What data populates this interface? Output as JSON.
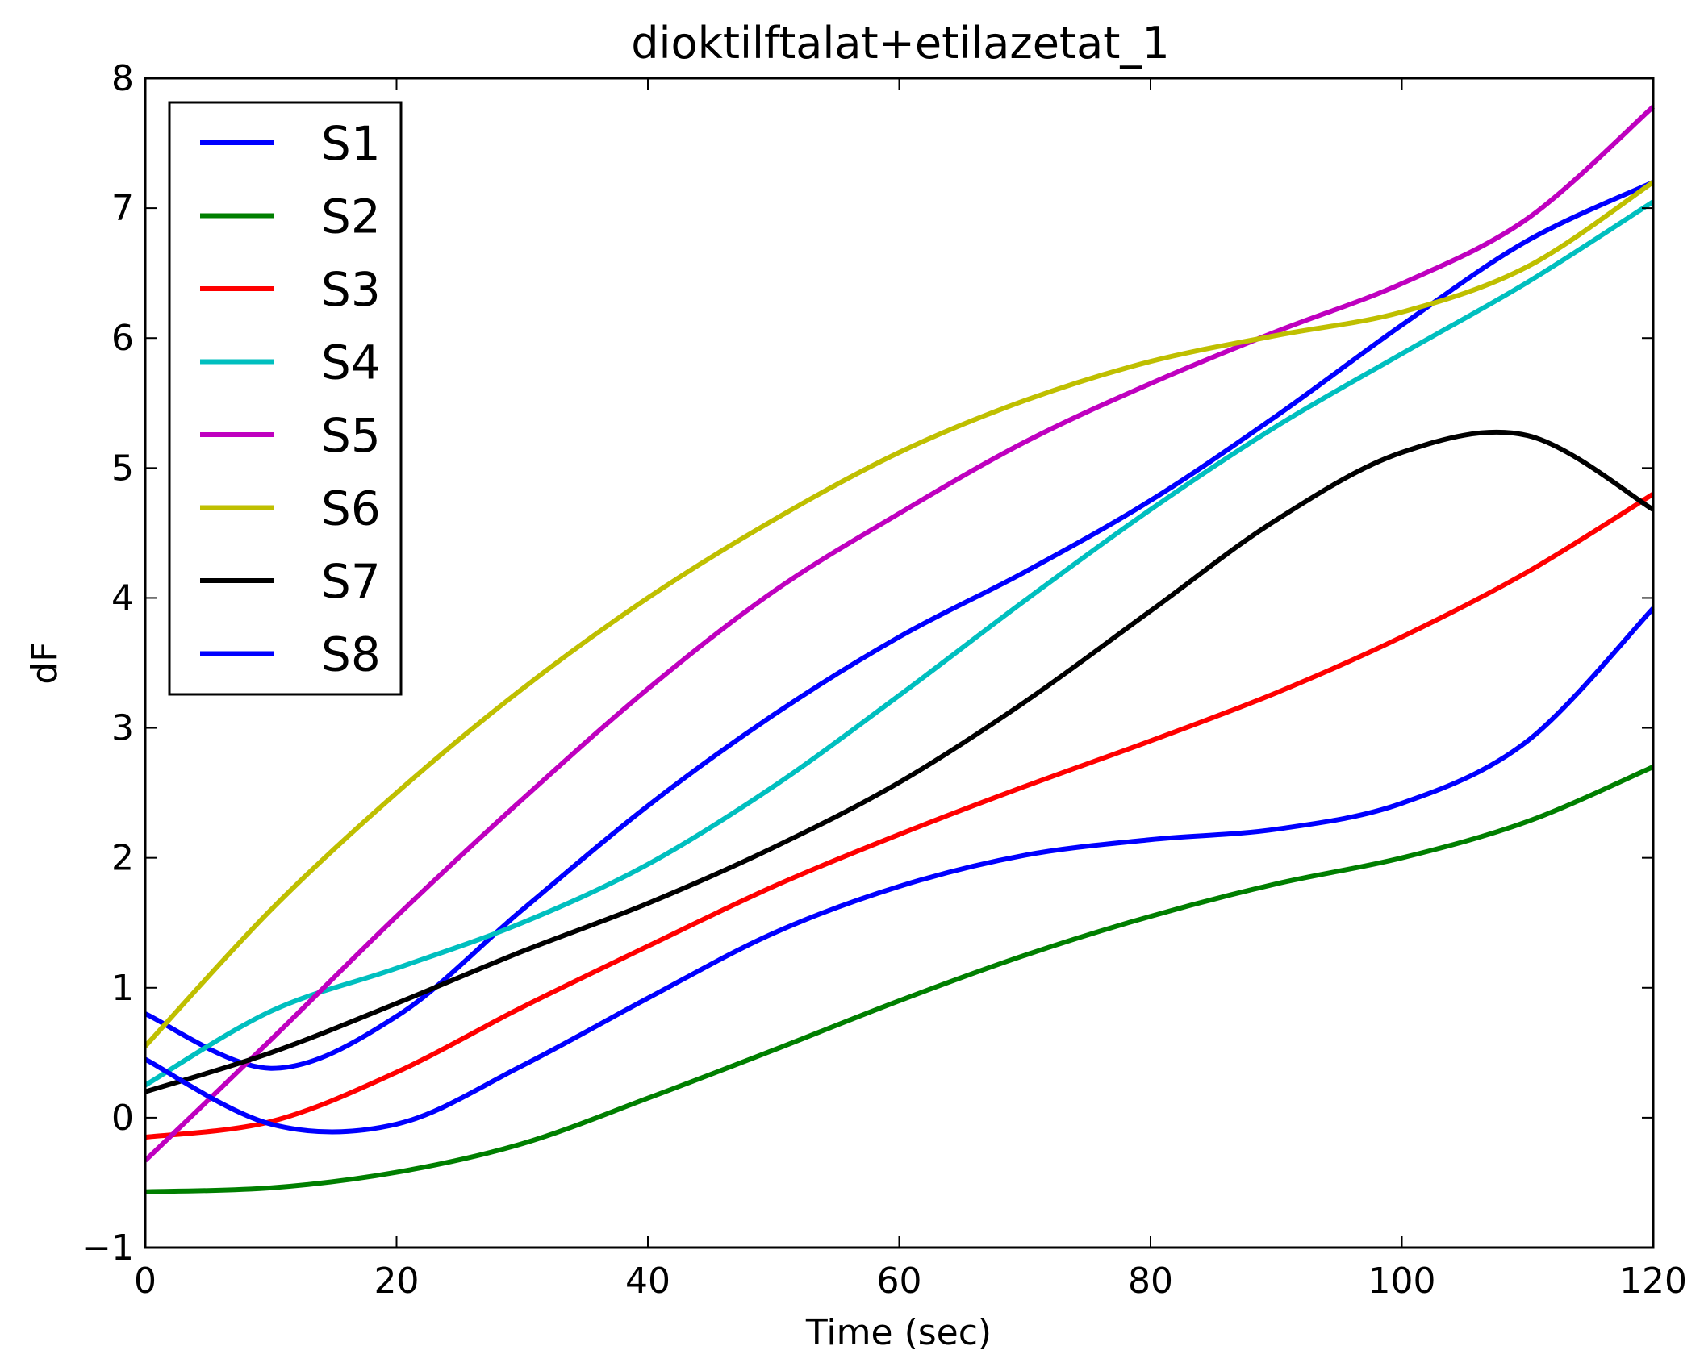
{
  "chart_data": {
    "type": "line",
    "title": "dioktilftalat+etilazetat_1",
    "xlabel": "Time (sec)",
    "ylabel": "dF",
    "xlim": [
      0,
      120
    ],
    "ylim": [
      -1,
      8
    ],
    "xticks": [
      0,
      20,
      40,
      60,
      80,
      100,
      120
    ],
    "xtick_labels": [
      "0",
      "20",
      "40",
      "60",
      "80",
      "100",
      "120"
    ],
    "yticks": [
      -1,
      0,
      1,
      2,
      3,
      4,
      5,
      6,
      7,
      8
    ],
    "ytick_labels": [
      "−1",
      "0",
      "1",
      "2",
      "3",
      "4",
      "5",
      "6",
      "7",
      "8"
    ],
    "grid": false,
    "legend_position": "upper-left",
    "x": [
      0,
      10,
      20,
      30,
      40,
      50,
      60,
      70,
      80,
      90,
      100,
      110,
      120
    ],
    "series": [
      {
        "name": "S1",
        "color": "#0000ff",
        "values": [
          0.8,
          0.38,
          0.78,
          1.6,
          2.4,
          3.1,
          3.7,
          4.2,
          4.75,
          5.4,
          6.1,
          6.75,
          7.2
        ]
      },
      {
        "name": "S2",
        "color": "#007f00",
        "values": [
          -0.57,
          -0.54,
          -0.42,
          -0.2,
          0.15,
          0.52,
          0.9,
          1.25,
          1.55,
          1.8,
          2.0,
          2.28,
          2.7
        ]
      },
      {
        "name": "S3",
        "color": "#ff0000",
        "values": [
          -0.15,
          -0.03,
          0.35,
          0.85,
          1.32,
          1.78,
          2.18,
          2.55,
          2.9,
          3.27,
          3.7,
          4.2,
          4.8
        ]
      },
      {
        "name": "S4",
        "color": "#00bfbf",
        "values": [
          0.25,
          0.82,
          1.15,
          1.5,
          1.95,
          2.55,
          3.25,
          3.98,
          4.68,
          5.32,
          5.88,
          6.43,
          7.05
        ]
      },
      {
        "name": "S5",
        "color": "#bf00bf",
        "values": [
          -0.33,
          0.6,
          1.55,
          2.45,
          3.3,
          4.05,
          4.65,
          5.2,
          5.65,
          6.05,
          6.42,
          6.92,
          7.78
        ]
      },
      {
        "name": "S6",
        "color": "#bfbf00",
        "values": [
          0.55,
          1.6,
          2.5,
          3.3,
          4.0,
          4.6,
          5.12,
          5.52,
          5.82,
          6.02,
          6.2,
          6.55,
          7.2
        ]
      },
      {
        "name": "S7",
        "color": "#000000",
        "values": [
          0.2,
          0.5,
          0.88,
          1.28,
          1.65,
          2.08,
          2.58,
          3.2,
          3.9,
          4.6,
          5.12,
          5.25,
          4.68
        ]
      },
      {
        "name": "S8",
        "color": "#0000ff",
        "values": [
          0.45,
          -0.05,
          -0.05,
          0.4,
          0.92,
          1.42,
          1.78,
          2.02,
          2.14,
          2.22,
          2.42,
          2.9,
          3.92
        ]
      }
    ]
  }
}
